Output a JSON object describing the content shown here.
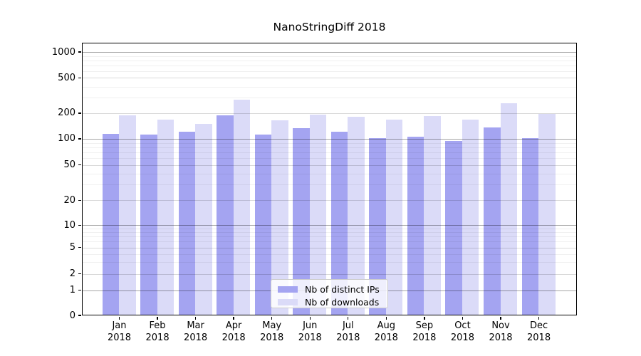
{
  "title": "NanoStringDiff 2018",
  "y_axis": {
    "tick_labels": [
      "0",
      "1",
      "2",
      "5",
      "10",
      "20",
      "50",
      "100",
      "200",
      "500",
      "1000"
    ]
  },
  "x_axis": {
    "months": [
      "Jan",
      "Feb",
      "Mar",
      "Apr",
      "May",
      "Jun",
      "Jul",
      "Aug",
      "Sep",
      "Oct",
      "Nov",
      "Dec"
    ],
    "year": "2018"
  },
  "legend": {
    "items": [
      {
        "label": "Nb of distinct IPs",
        "color": "#a4a4f1"
      },
      {
        "label": "Nb of downloads",
        "color": "#dbdbf8"
      }
    ]
  },
  "chart_data": {
    "type": "bar",
    "title": "NanoStringDiff 2018",
    "categories": [
      "Jan 2018",
      "Feb 2018",
      "Mar 2018",
      "Apr 2018",
      "May 2018",
      "Jun 2018",
      "Jul 2018",
      "Aug 2018",
      "Sep 2018",
      "Oct 2018",
      "Nov 2018",
      "Dec 2018"
    ],
    "series": [
      {
        "name": "Nb of distinct IPs",
        "color": "#a4a4f1",
        "values": [
          115,
          114,
          122,
          192,
          113,
          135,
          122,
          103,
          108,
          95,
          137,
          102
        ]
      },
      {
        "name": "Nb of downloads",
        "color": "#dbdbf8",
        "values": [
          192,
          169,
          150,
          288,
          166,
          193,
          183,
          169,
          187,
          171,
          263,
          198
        ]
      }
    ],
    "y_ticks": [
      0,
      1,
      2,
      5,
      10,
      20,
      50,
      100,
      200,
      500,
      1000
    ],
    "y_scale": "symlog-like",
    "ylim": [
      0,
      1000
    ],
    "xlabel": "",
    "ylabel": "",
    "grid": true,
    "legend_position": "lower-center-inside"
  }
}
